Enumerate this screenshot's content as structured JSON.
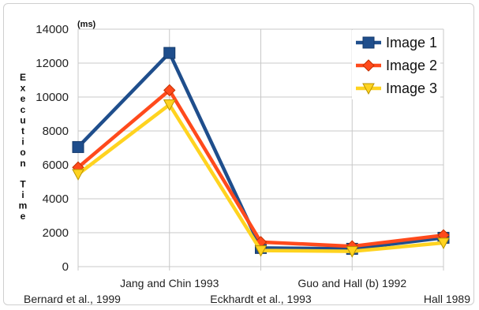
{
  "chart_data": {
    "type": "line",
    "title": "",
    "unit_label": "(ms)",
    "ylabel": "Execution Time",
    "xlabel": "",
    "categories": [
      "Bernard et al., 1999",
      "Jang and Chin 1993",
      "Eckhardt et al., 1993",
      "Guo and Hall (b) 1992",
      "Hall 1989"
    ],
    "ylim": [
      0,
      14000
    ],
    "yticks": [
      0,
      2000,
      4000,
      6000,
      8000,
      10000,
      12000,
      14000
    ],
    "grid": true,
    "legend_position": "top-right",
    "series": [
      {
        "name": "Image 1",
        "values": [
          7050,
          12600,
          1100,
          1050,
          1700
        ],
        "color": "#1f4e8c",
        "marker": "square"
      },
      {
        "name": "Image 2",
        "values": [
          5850,
          10400,
          1450,
          1200,
          1850
        ],
        "color": "#ff4a1c",
        "marker": "diamond"
      },
      {
        "name": "Image 3",
        "values": [
          5450,
          9550,
          950,
          900,
          1400
        ],
        "color": "#ffd320",
        "marker": "triangle-down"
      }
    ]
  }
}
